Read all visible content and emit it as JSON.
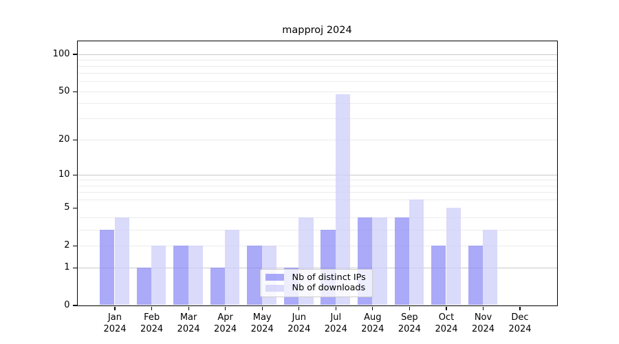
{
  "chart_data": {
    "type": "bar",
    "title": "mapproj 2024",
    "scale": "log1p",
    "categories": [
      "Jan",
      "Feb",
      "Mar",
      "Apr",
      "May",
      "Jun",
      "Jul",
      "Aug",
      "Sep",
      "Oct",
      "Nov",
      "Dec"
    ],
    "category_year": "2024",
    "series": [
      {
        "name": "Nb of distinct IPs",
        "color": "rgba(137,137,245,0.72)",
        "values": [
          3,
          1,
          2,
          1,
          2,
          1,
          3,
          4,
          4,
          2,
          2,
          0
        ]
      },
      {
        "name": "Nb of downloads",
        "color": "rgba(206,206,250,0.75)",
        "values": [
          4,
          2,
          2,
          3,
          2,
          4,
          47,
          4,
          6,
          5,
          3,
          0
        ]
      }
    ],
    "y_ticks": [
      0,
      1,
      2,
      5,
      10,
      20,
      50,
      100
    ],
    "y_major_grid": [
      1,
      10,
      100
    ],
    "y_minor_grid": [
      2,
      3,
      4,
      6,
      7,
      8,
      9,
      20,
      30,
      40,
      50,
      60,
      70,
      80,
      90
    ],
    "ylim": [
      0,
      128
    ],
    "xlabel": "",
    "ylabel": "",
    "grid": "on",
    "legend_position": "inside-bottom-center"
  },
  "colors": {
    "series_ips": "rgba(137,137,245,0.72)",
    "series_downloads": "rgba(206,206,250,0.75)",
    "grid_major": "#c9c9c9",
    "grid_minor": "#ececec",
    "spine": "#000000",
    "legend_border": "#cccccc"
  }
}
